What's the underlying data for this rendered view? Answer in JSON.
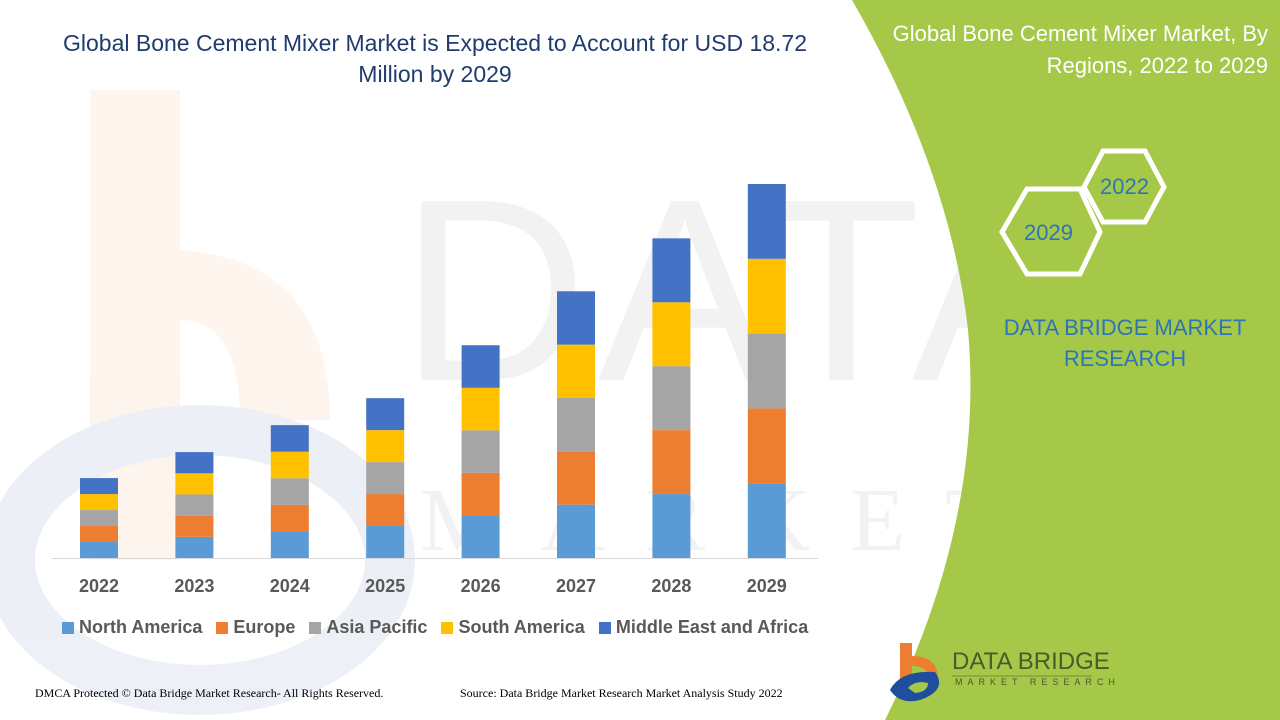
{
  "title": "Global Bone Cement Mixer Market is Expected to Account for USD 18.72 Million by 2029",
  "side_panel": {
    "title": "Global Bone Cement Mixer Market, By Regions, 2022 to 2029",
    "hex_labels": [
      "2022",
      "2029"
    ],
    "brand": "DATA BRIDGE MARKET RESEARCH",
    "logo_text": "DATA BRIDGE",
    "logo_sub": "MARKET RESEARCH",
    "panel_color": "#a5c849"
  },
  "footer": {
    "left": "DMCA Protected © Data Bridge Market Research- All Rights Reserved.",
    "right": "Source: Data Bridge Market Research Market Analysis Study 2022"
  },
  "chart_data": {
    "type": "bar",
    "stacked": true,
    "categories": [
      "2022",
      "2023",
      "2024",
      "2025",
      "2026",
      "2027",
      "2028",
      "2029"
    ],
    "series": [
      {
        "name": "North America",
        "color": "#5b9bd5",
        "values": [
          0.8,
          1.06,
          1.33,
          1.6,
          2.13,
          2.67,
          3.2,
          3.744
        ]
      },
      {
        "name": "Europe",
        "color": "#ed7d31",
        "values": [
          0.8,
          1.06,
          1.33,
          1.6,
          2.13,
          2.67,
          3.2,
          3.744
        ]
      },
      {
        "name": "Asia Pacific",
        "color": "#a5a5a5",
        "values": [
          0.8,
          1.06,
          1.33,
          1.6,
          2.13,
          2.67,
          3.2,
          3.744
        ]
      },
      {
        "name": "South America",
        "color": "#ffc000",
        "values": [
          0.8,
          1.06,
          1.33,
          1.6,
          2.13,
          2.67,
          3.2,
          3.744
        ]
      },
      {
        "name": "Middle East and Africa",
        "color": "#4472c4",
        "values": [
          0.8,
          1.06,
          1.33,
          1.6,
          2.13,
          2.67,
          3.2,
          3.744
        ]
      }
    ],
    "ylim": [
      0,
      18.72
    ],
    "grid": false,
    "legend": "bottom"
  }
}
